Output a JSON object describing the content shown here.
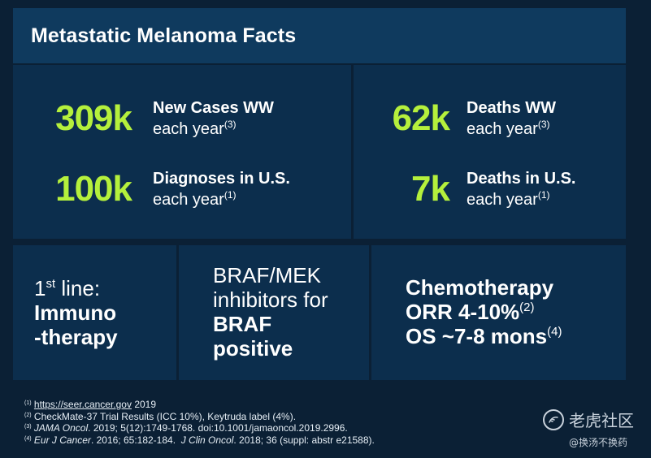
{
  "title": "Metastatic Melanoma Facts",
  "stats": {
    "new_cases": {
      "value": "309k",
      "label": "New Cases WW",
      "sub": "each year",
      "ref": "(3)"
    },
    "diagnoses_us": {
      "value": "100k",
      "label": "Diagnoses in U.S.",
      "sub": "each year",
      "ref": "(1)"
    },
    "deaths_ww": {
      "value": "62k",
      "label": "Deaths WW",
      "sub": "each year",
      "ref": "(3)"
    },
    "deaths_us": {
      "value": "7k",
      "label": "Deaths in U.S.",
      "sub": "each year",
      "ref": "(1)"
    }
  },
  "boxes": {
    "first_line": {
      "prefix": "1",
      "sup": "st",
      "suffix": " line:",
      "line2": "Immuno",
      "line3": "-therapy"
    },
    "braf": {
      "line1": "BRAF/MEK",
      "line2": "inhibitors for",
      "line3": "BRAF",
      "line4": "positive"
    },
    "chemo": {
      "line1": "Chemotherapy",
      "line2": "ORR 4-10%",
      "line2_ref": "(2)",
      "line3": "OS ~7-8 mons",
      "line3_ref": "(4)"
    }
  },
  "footnotes": {
    "fn1": {
      "ref": "(1)",
      "link": "https://seer.cancer.gov",
      "text": " 2019"
    },
    "fn2": {
      "ref": "(2)",
      "text": "CheckMate-37 Trial Results (ICC 10%), Keytruda label (4%)."
    },
    "fn3": {
      "ref": "(3)",
      "journal": "JAMA Oncol",
      "text": ". 2019; 5(12):1749-1768. doi:10.1001/jamaoncol.2019.2996."
    },
    "fn4": {
      "ref": "(4)",
      "journal": "Eur J Cancer",
      "text": ". 2016; 65:182-184.  ",
      "journal2": "J Clin Oncol",
      "text2": ". 2018; 36 (suppl: abstr e21588)."
    }
  },
  "watermark": {
    "main": "老虎社区",
    "sub": "@换汤不换药"
  },
  "colors": {
    "accent": "#b5f03c",
    "panel": "#0c2e4d",
    "title_bar": "#0f3a5e",
    "background": "#0b2035"
  }
}
